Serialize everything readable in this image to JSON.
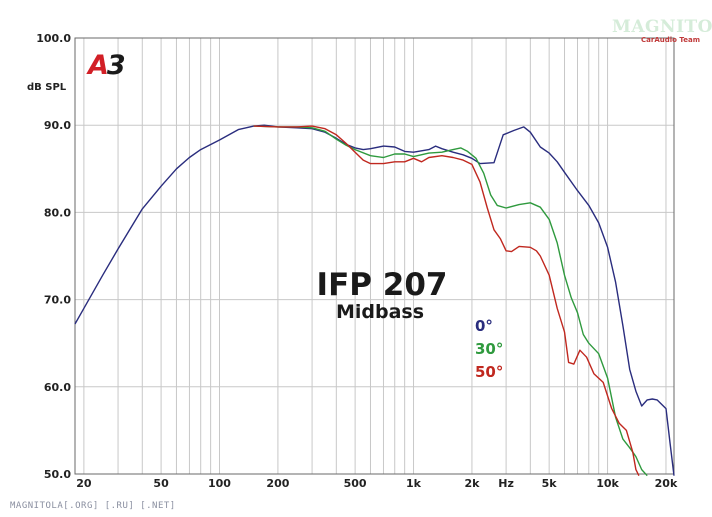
{
  "chart_data": {
    "type": "line",
    "title": "IFP 207",
    "subtitle": "Midbass",
    "ylabel": "dB SPL",
    "xlabel": "Hz",
    "x_scale": "log",
    "xlim": [
      18,
      22000
    ],
    "ylim": [
      50,
      100
    ],
    "y_ticks": [
      "50.0",
      "60.0",
      "70.0",
      "80.0",
      "90.0",
      "100.0"
    ],
    "x_ticks": [
      "20",
      "50",
      "100",
      "200",
      "500",
      "1k",
      "2k",
      "Hz",
      "5k",
      "10k",
      "20k"
    ],
    "grid": true,
    "legend_position": "center-right",
    "series": [
      {
        "name": "0°",
        "color": "#2a2d7e",
        "points": [
          [
            18,
            67.2
          ],
          [
            20,
            69.0
          ],
          [
            25,
            72.8
          ],
          [
            30,
            75.8
          ],
          [
            40,
            80.4
          ],
          [
            50,
            83.0
          ],
          [
            60,
            85.0
          ],
          [
            70,
            86.3
          ],
          [
            80,
            87.2
          ],
          [
            100,
            88.3
          ],
          [
            125,
            89.5
          ],
          [
            150,
            89.9
          ],
          [
            170,
            90.0
          ],
          [
            200,
            89.8
          ],
          [
            250,
            89.7
          ],
          [
            300,
            89.6
          ],
          [
            350,
            89.2
          ],
          [
            400,
            88.5
          ],
          [
            450,
            87.8
          ],
          [
            500,
            87.4
          ],
          [
            550,
            87.2
          ],
          [
            600,
            87.3
          ],
          [
            700,
            87.6
          ],
          [
            800,
            87.5
          ],
          [
            900,
            87.0
          ],
          [
            1000,
            86.9
          ],
          [
            1200,
            87.2
          ],
          [
            1300,
            87.6
          ],
          [
            1400,
            87.3
          ],
          [
            1600,
            86.9
          ],
          [
            1800,
            86.6
          ],
          [
            2000,
            86.2
          ],
          [
            2200,
            85.6
          ],
          [
            2600,
            85.7
          ],
          [
            2900,
            88.9
          ],
          [
            3300,
            89.4
          ],
          [
            3700,
            89.8
          ],
          [
            4000,
            89.2
          ],
          [
            4500,
            87.5
          ],
          [
            5000,
            86.8
          ],
          [
            5500,
            85.8
          ],
          [
            6000,
            84.6
          ],
          [
            7000,
            82.5
          ],
          [
            8000,
            80.8
          ],
          [
            9000,
            78.8
          ],
          [
            10000,
            76.0
          ],
          [
            11000,
            72.0
          ],
          [
            12000,
            67.0
          ],
          [
            13000,
            62.0
          ],
          [
            14000,
            59.5
          ],
          [
            15000,
            57.8
          ],
          [
            16000,
            58.5
          ],
          [
            17000,
            58.6
          ],
          [
            18000,
            58.5
          ],
          [
            20000,
            57.5
          ],
          [
            21000,
            53.5
          ],
          [
            22000,
            49.8
          ]
        ]
      },
      {
        "name": "30°",
        "color": "#2f9a3e",
        "points": [
          [
            150,
            89.9
          ],
          [
            200,
            89.8
          ],
          [
            250,
            89.8
          ],
          [
            300,
            89.7
          ],
          [
            350,
            89.3
          ],
          [
            400,
            88.4
          ],
          [
            450,
            87.7
          ],
          [
            500,
            87.2
          ],
          [
            600,
            86.5
          ],
          [
            700,
            86.3
          ],
          [
            800,
            86.7
          ],
          [
            900,
            86.7
          ],
          [
            1000,
            86.4
          ],
          [
            1200,
            86.8
          ],
          [
            1400,
            86.9
          ],
          [
            1600,
            87.2
          ],
          [
            1750,
            87.4
          ],
          [
            1900,
            87.0
          ],
          [
            2100,
            86.2
          ],
          [
            2300,
            84.5
          ],
          [
            2500,
            82.0
          ],
          [
            2700,
            80.8
          ],
          [
            3000,
            80.5
          ],
          [
            3500,
            80.9
          ],
          [
            4000,
            81.1
          ],
          [
            4500,
            80.6
          ],
          [
            5000,
            79.2
          ],
          [
            5500,
            76.5
          ],
          [
            6000,
            72.8
          ],
          [
            6500,
            70.2
          ],
          [
            7000,
            68.5
          ],
          [
            7500,
            66.0
          ],
          [
            8000,
            65.0
          ],
          [
            9000,
            63.8
          ],
          [
            10000,
            61.0
          ],
          [
            11000,
            56.5
          ],
          [
            12000,
            54.0
          ],
          [
            13000,
            53.0
          ],
          [
            14000,
            52.0
          ],
          [
            15000,
            50.5
          ],
          [
            16000,
            49.8
          ]
        ]
      },
      {
        "name": "50°",
        "color": "#c0281f",
        "points": [
          [
            150,
            89.9
          ],
          [
            200,
            89.8
          ],
          [
            250,
            89.8
          ],
          [
            300,
            89.9
          ],
          [
            350,
            89.6
          ],
          [
            400,
            88.9
          ],
          [
            450,
            87.9
          ],
          [
            500,
            86.9
          ],
          [
            550,
            86.0
          ],
          [
            600,
            85.6
          ],
          [
            700,
            85.6
          ],
          [
            800,
            85.8
          ],
          [
            900,
            85.8
          ],
          [
            1000,
            86.2
          ],
          [
            1100,
            85.8
          ],
          [
            1200,
            86.3
          ],
          [
            1400,
            86.5
          ],
          [
            1600,
            86.3
          ],
          [
            1800,
            86.0
          ],
          [
            2000,
            85.5
          ],
          [
            2200,
            83.5
          ],
          [
            2400,
            80.5
          ],
          [
            2600,
            78.0
          ],
          [
            2800,
            77.0
          ],
          [
            3000,
            75.6
          ],
          [
            3200,
            75.5
          ],
          [
            3500,
            76.1
          ],
          [
            4000,
            76.0
          ],
          [
            4300,
            75.6
          ],
          [
            4500,
            75.0
          ],
          [
            5000,
            72.8
          ],
          [
            5500,
            69.0
          ],
          [
            6000,
            66.3
          ],
          [
            6300,
            62.8
          ],
          [
            6700,
            62.6
          ],
          [
            7200,
            64.2
          ],
          [
            7800,
            63.4
          ],
          [
            8500,
            61.5
          ],
          [
            9500,
            60.5
          ],
          [
            10500,
            57.5
          ],
          [
            11500,
            55.8
          ],
          [
            12500,
            55.0
          ],
          [
            13500,
            52.5
          ],
          [
            14000,
            50.5
          ],
          [
            14500,
            49.8
          ]
        ]
      }
    ]
  },
  "badge": {
    "letter": "A",
    "number": "3"
  },
  "brand": {
    "main": "MAGNITOLA",
    "sub": "CarAudio Team"
  },
  "footer": {
    "text": "MAGNITOLA[.ORG] [.RU] [.NET]"
  }
}
